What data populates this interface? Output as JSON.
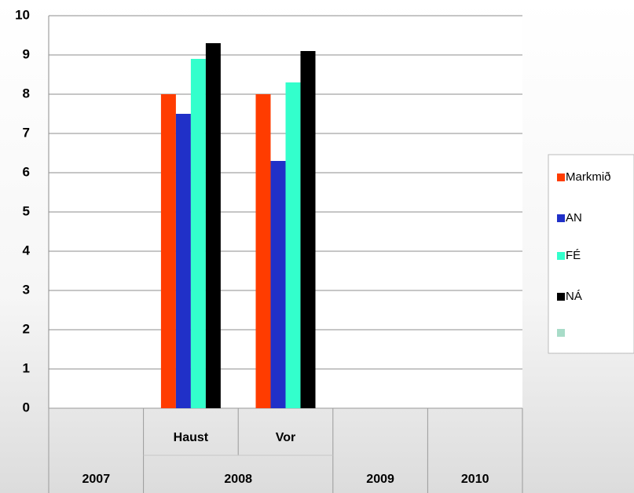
{
  "chart_data": {
    "type": "bar",
    "categories": [
      null,
      "Haust",
      "Vor",
      null,
      null
    ],
    "groups": [
      {
        "name": "2007",
        "size": 1
      },
      {
        "name": "2008",
        "size": 2
      },
      {
        "name": "2009",
        "size": 1
      },
      {
        "name": "2010",
        "size": 1
      }
    ],
    "series": [
      {
        "name": "Markmið",
        "color": "#ff3c00",
        "values": [
          null,
          8,
          8,
          null,
          null
        ]
      },
      {
        "name": "AN",
        "color": "#2030c8",
        "values": [
          null,
          7.5,
          6.3,
          null,
          null
        ]
      },
      {
        "name": "FÉ",
        "color": "#33ffcc",
        "values": [
          null,
          8.9,
          8.3,
          null,
          null
        ]
      },
      {
        "name": "NÁ",
        "color": "#000000",
        "values": [
          null,
          9.3,
          9.1,
          null,
          null
        ]
      },
      {
        "name": null,
        "color": "#a8dcc8",
        "values": [
          null,
          null,
          null,
          null,
          null
        ]
      }
    ],
    "ylim": [
      0,
      10
    ],
    "yticks": [
      0,
      1,
      2,
      3,
      4,
      5,
      6,
      7,
      8,
      9,
      10
    ],
    "grid": true,
    "legend": "right"
  }
}
